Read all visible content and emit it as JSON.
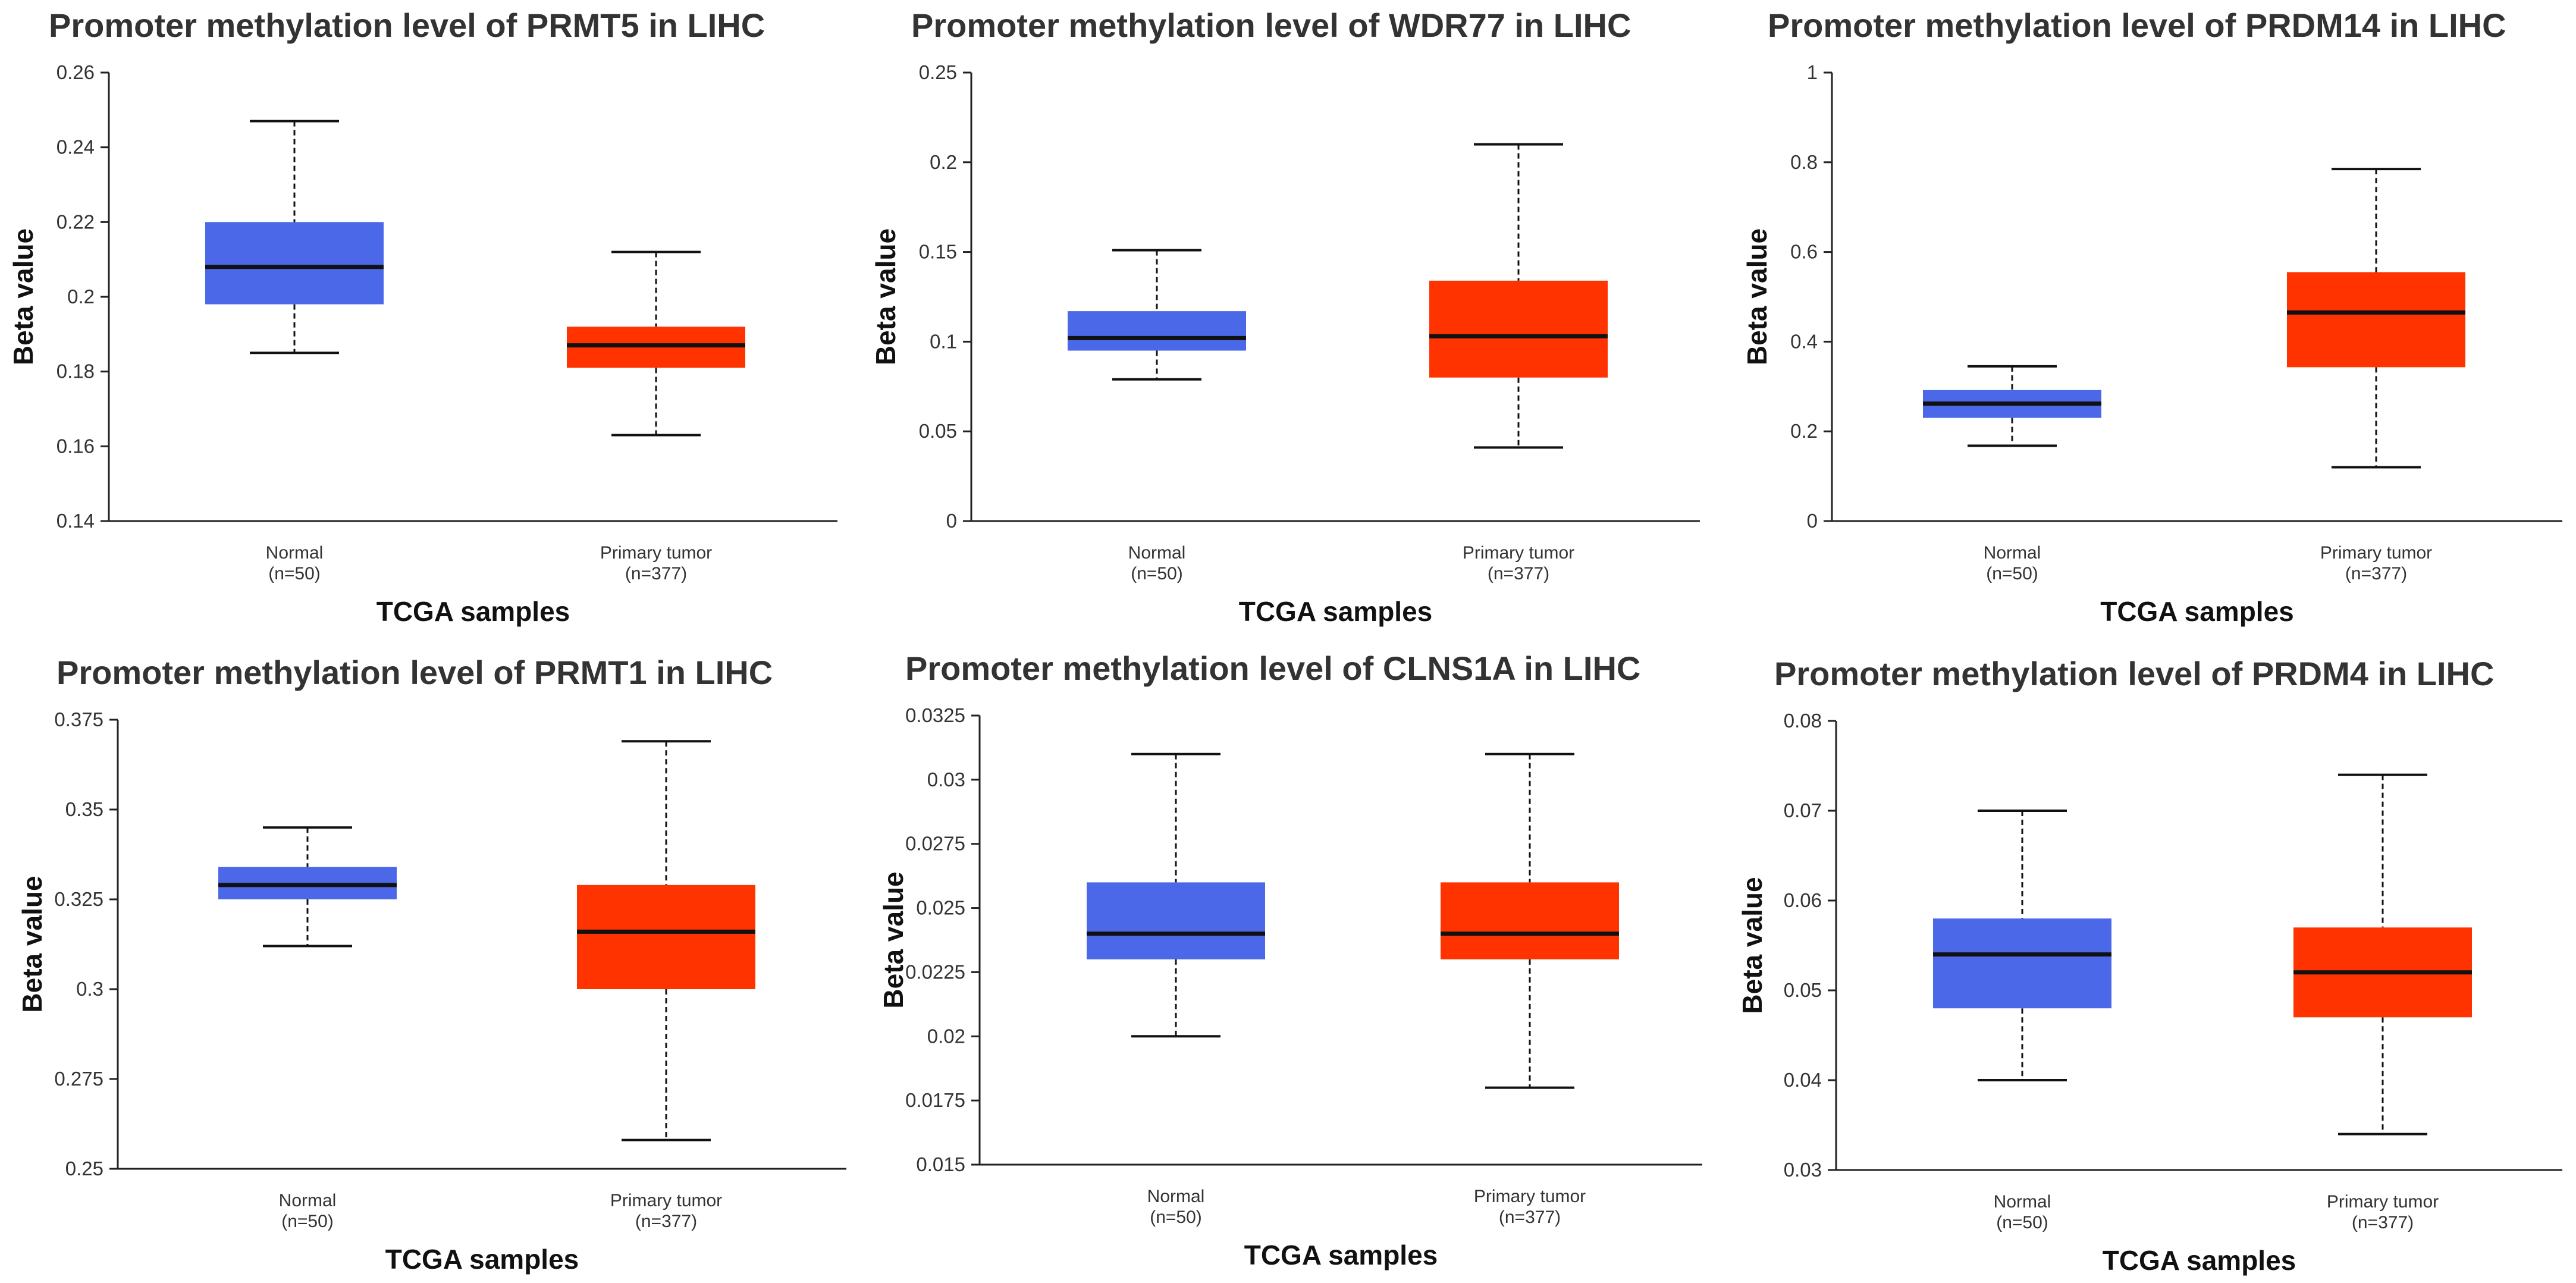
{
  "colors": {
    "normal": "#4b68e8",
    "tumor": "#ff3300"
  },
  "chart_data": [
    {
      "type": "box",
      "title": "Promoter methylation level of PRMT5 in LIHC",
      "xlabel": "TCGA samples",
      "ylabel": "Beta value",
      "ylim": [
        0.14,
        0.26
      ],
      "yticks": [
        0.14,
        0.16,
        0.18,
        0.2,
        0.22,
        0.24,
        0.26
      ],
      "ytick_labels": [
        "0.14",
        "0.16",
        "0.18",
        "0.2",
        "0.22",
        "0.24",
        "0.26"
      ],
      "groups": [
        {
          "name": "Normal",
          "n": "(n=50)",
          "min": 0.185,
          "q1": 0.198,
          "median": 0.208,
          "q3": 0.22,
          "max": 0.247
        },
        {
          "name": "Primary tumor",
          "n": "(n=377)",
          "min": 0.163,
          "q1": 0.181,
          "median": 0.187,
          "q3": 0.192,
          "max": 0.212
        }
      ]
    },
    {
      "type": "box",
      "title": "Promoter methylation level of WDR77 in LIHC",
      "xlabel": "TCGA samples",
      "ylabel": "Beta value",
      "ylim": [
        0,
        0.25
      ],
      "yticks": [
        0,
        0.05,
        0.1,
        0.15,
        0.2,
        0.25
      ],
      "ytick_labels": [
        "0",
        "0.05",
        "0.1",
        "0.15",
        "0.2",
        "0.25"
      ],
      "groups": [
        {
          "name": "Normal",
          "n": "(n=50)",
          "min": 0.079,
          "q1": 0.095,
          "median": 0.102,
          "q3": 0.117,
          "max": 0.151
        },
        {
          "name": "Primary tumor",
          "n": "(n=377)",
          "min": 0.041,
          "q1": 0.08,
          "median": 0.103,
          "q3": 0.134,
          "max": 0.21
        }
      ]
    },
    {
      "type": "box",
      "title": "Promoter methylation level of PRDM14 in LIHC",
      "xlabel": "TCGA samples",
      "ylabel": "Beta value",
      "ylim": [
        0,
        1
      ],
      "yticks": [
        0,
        0.2,
        0.4,
        0.6,
        0.8,
        1
      ],
      "ytick_labels": [
        "0",
        "0.2",
        "0.4",
        "0.6",
        "0.8",
        "1"
      ],
      "groups": [
        {
          "name": "Normal",
          "n": "(n=50)",
          "min": 0.168,
          "q1": 0.23,
          "median": 0.262,
          "q3": 0.292,
          "max": 0.345
        },
        {
          "name": "Primary tumor",
          "n": "(n=377)",
          "min": 0.12,
          "q1": 0.343,
          "median": 0.465,
          "q3": 0.555,
          "max": 0.785
        }
      ]
    },
    {
      "type": "box",
      "title": "Promoter methylation level of PRMT1 in LIHC",
      "xlabel": "TCGA samples",
      "ylabel": "Beta value",
      "ylim": [
        0.25,
        0.375
      ],
      "yticks": [
        0.25,
        0.275,
        0.3,
        0.325,
        0.35,
        0.375
      ],
      "ytick_labels": [
        "0.25",
        "0.275",
        "0.3",
        "0.325",
        "0.35",
        "0.375"
      ],
      "groups": [
        {
          "name": "Normal",
          "n": "(n=50)",
          "min": 0.312,
          "q1": 0.325,
          "median": 0.329,
          "q3": 0.334,
          "max": 0.345
        },
        {
          "name": "Primary tumor",
          "n": "(n=377)",
          "min": 0.258,
          "q1": 0.3,
          "median": 0.316,
          "q3": 0.329,
          "max": 0.369
        }
      ]
    },
    {
      "type": "box",
      "title": "Promoter methylation level of CLNS1A in LIHC",
      "xlabel": "TCGA samples",
      "ylabel": "Beta value",
      "ylim": [
        0.015,
        0.0325
      ],
      "yticks": [
        0.015,
        0.0175,
        0.02,
        0.0225,
        0.025,
        0.0275,
        0.03,
        0.0325
      ],
      "ytick_labels": [
        "0.015",
        "0.0175",
        "0.02",
        "0.0225",
        "0.025",
        "0.0275",
        "0.03",
        "0.0325"
      ],
      "groups": [
        {
          "name": "Normal",
          "n": "(n=50)",
          "min": 0.02,
          "q1": 0.023,
          "median": 0.024,
          "q3": 0.026,
          "max": 0.031
        },
        {
          "name": "Primary tumor",
          "n": "(n=377)",
          "min": 0.018,
          "q1": 0.023,
          "median": 0.024,
          "q3": 0.026,
          "max": 0.031
        }
      ]
    },
    {
      "type": "box",
      "title": "Promoter methylation level of PRDM4 in LIHC",
      "xlabel": "TCGA samples",
      "ylabel": "Beta value",
      "ylim": [
        0.03,
        0.08
      ],
      "yticks": [
        0.03,
        0.04,
        0.05,
        0.06,
        0.07,
        0.08
      ],
      "ytick_labels": [
        "0.03",
        "0.04",
        "0.05",
        "0.06",
        "0.07",
        "0.08"
      ],
      "groups": [
        {
          "name": "Normal",
          "n": "(n=50)",
          "min": 0.04,
          "q1": 0.048,
          "median": 0.054,
          "q3": 0.058,
          "max": 0.07
        },
        {
          "name": "Primary tumor",
          "n": "(n=377)",
          "min": 0.034,
          "q1": 0.047,
          "median": 0.052,
          "q3": 0.057,
          "max": 0.074
        }
      ]
    }
  ]
}
